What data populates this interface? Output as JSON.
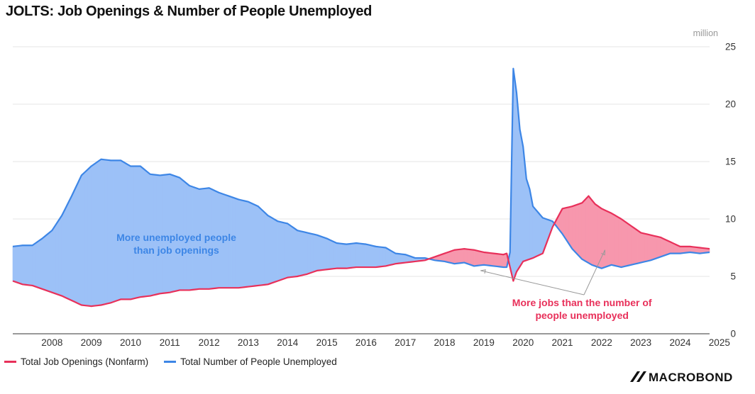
{
  "title": "JOLTS: Job Openings & Number of People Unemployed",
  "colors": {
    "openings": "#e8305a",
    "unemployed": "#3d86e6",
    "openings_fill": "#f797ad",
    "unemployed_fill": "#9cc1f7"
  },
  "logo_text": "MACROBOND",
  "chart_data": {
    "type": "area",
    "title": "JOLTS: Job Openings & Number of People Unemployed",
    "unit_label": "million",
    "xlabel": "",
    "ylabel": "",
    "ylim": [
      0,
      25
    ],
    "y_ticks": [
      0,
      5,
      10,
      15,
      20,
      25
    ],
    "y_axis_side": "right",
    "x_range": [
      "2007-07",
      "2025-04"
    ],
    "x_ticks": [
      "2008",
      "2009",
      "2010",
      "2011",
      "2012",
      "2013",
      "2014",
      "2015",
      "2016",
      "2017",
      "2018",
      "2019",
      "2020",
      "2021",
      "2022",
      "2023",
      "2024",
      "2025"
    ],
    "grid": "horizontal",
    "legend_position": "bottom-left",
    "series": [
      {
        "name": "Total Job Openings (Nonfarm)",
        "points": [
          [
            "2007-07",
            4.6
          ],
          [
            "2007-10",
            4.3
          ],
          [
            "2008-01",
            4.2
          ],
          [
            "2008-04",
            3.9
          ],
          [
            "2008-07",
            3.6
          ],
          [
            "2008-10",
            3.3
          ],
          [
            "2009-01",
            2.9
          ],
          [
            "2009-04",
            2.5
          ],
          [
            "2009-07",
            2.4
          ],
          [
            "2009-10",
            2.5
          ],
          [
            "2010-01",
            2.7
          ],
          [
            "2010-04",
            3.0
          ],
          [
            "2010-07",
            3.0
          ],
          [
            "2010-10",
            3.2
          ],
          [
            "2011-01",
            3.3
          ],
          [
            "2011-04",
            3.5
          ],
          [
            "2011-07",
            3.6
          ],
          [
            "2011-10",
            3.8
          ],
          [
            "2012-01",
            3.8
          ],
          [
            "2012-04",
            3.9
          ],
          [
            "2012-07",
            3.9
          ],
          [
            "2012-10",
            4.0
          ],
          [
            "2013-01",
            4.0
          ],
          [
            "2013-04",
            4.0
          ],
          [
            "2013-07",
            4.1
          ],
          [
            "2013-10",
            4.2
          ],
          [
            "2014-01",
            4.3
          ],
          [
            "2014-04",
            4.6
          ],
          [
            "2014-07",
            4.9
          ],
          [
            "2014-10",
            5.0
          ],
          [
            "2015-01",
            5.2
          ],
          [
            "2015-04",
            5.5
          ],
          [
            "2015-07",
            5.6
          ],
          [
            "2015-10",
            5.7
          ],
          [
            "2016-01",
            5.7
          ],
          [
            "2016-04",
            5.8
          ],
          [
            "2016-07",
            5.8
          ],
          [
            "2016-10",
            5.8
          ],
          [
            "2017-01",
            5.9
          ],
          [
            "2017-04",
            6.1
          ],
          [
            "2017-07",
            6.2
          ],
          [
            "2017-10",
            6.3
          ],
          [
            "2018-01",
            6.4
          ],
          [
            "2018-04",
            6.7
          ],
          [
            "2018-07",
            7.0
          ],
          [
            "2018-10",
            7.3
          ],
          [
            "2019-01",
            7.4
          ],
          [
            "2019-04",
            7.3
          ],
          [
            "2019-07",
            7.1
          ],
          [
            "2019-10",
            7.0
          ],
          [
            "2020-01",
            6.9
          ],
          [
            "2020-02",
            7.0
          ],
          [
            "2020-03",
            5.8
          ],
          [
            "2020-04",
            4.6
          ],
          [
            "2020-05",
            5.4
          ],
          [
            "2020-07",
            6.3
          ],
          [
            "2020-10",
            6.6
          ],
          [
            "2021-01",
            7.0
          ],
          [
            "2021-04",
            9.3
          ],
          [
            "2021-07",
            10.9
          ],
          [
            "2021-10",
            11.1
          ],
          [
            "2022-01",
            11.4
          ],
          [
            "2022-03",
            12.0
          ],
          [
            "2022-05",
            11.3
          ],
          [
            "2022-07",
            10.9
          ],
          [
            "2022-10",
            10.5
          ],
          [
            "2023-01",
            10.0
          ],
          [
            "2023-04",
            9.4
          ],
          [
            "2023-07",
            8.8
          ],
          [
            "2023-10",
            8.6
          ],
          [
            "2024-01",
            8.4
          ],
          [
            "2024-04",
            8.0
          ],
          [
            "2024-07",
            7.6
          ],
          [
            "2024-10",
            7.6
          ],
          [
            "2025-01",
            7.5
          ],
          [
            "2025-04",
            7.4
          ]
        ]
      },
      {
        "name": "Total Number of People Unemployed",
        "points": [
          [
            "2007-07",
            7.6
          ],
          [
            "2007-10",
            7.7
          ],
          [
            "2008-01",
            7.7
          ],
          [
            "2008-04",
            8.3
          ],
          [
            "2008-07",
            9.0
          ],
          [
            "2008-10",
            10.3
          ],
          [
            "2009-01",
            12.0
          ],
          [
            "2009-04",
            13.8
          ],
          [
            "2009-07",
            14.6
          ],
          [
            "2009-10",
            15.2
          ],
          [
            "2010-01",
            15.1
          ],
          [
            "2010-04",
            15.1
          ],
          [
            "2010-07",
            14.6
          ],
          [
            "2010-10",
            14.6
          ],
          [
            "2011-01",
            13.9
          ],
          [
            "2011-04",
            13.8
          ],
          [
            "2011-07",
            13.9
          ],
          [
            "2011-10",
            13.6
          ],
          [
            "2012-01",
            12.9
          ],
          [
            "2012-04",
            12.6
          ],
          [
            "2012-07",
            12.7
          ],
          [
            "2012-10",
            12.3
          ],
          [
            "2013-01",
            12.0
          ],
          [
            "2013-04",
            11.7
          ],
          [
            "2013-07",
            11.5
          ],
          [
            "2013-10",
            11.1
          ],
          [
            "2014-01",
            10.3
          ],
          [
            "2014-04",
            9.8
          ],
          [
            "2014-07",
            9.6
          ],
          [
            "2014-10",
            9.0
          ],
          [
            "2015-01",
            8.8
          ],
          [
            "2015-04",
            8.6
          ],
          [
            "2015-07",
            8.3
          ],
          [
            "2015-10",
            7.9
          ],
          [
            "2016-01",
            7.8
          ],
          [
            "2016-04",
            7.9
          ],
          [
            "2016-07",
            7.8
          ],
          [
            "2016-10",
            7.6
          ],
          [
            "2017-01",
            7.5
          ],
          [
            "2017-04",
            7.0
          ],
          [
            "2017-07",
            6.9
          ],
          [
            "2017-10",
            6.6
          ],
          [
            "2018-01",
            6.6
          ],
          [
            "2018-04",
            6.4
          ],
          [
            "2018-07",
            6.3
          ],
          [
            "2018-10",
            6.1
          ],
          [
            "2019-01",
            6.2
          ],
          [
            "2019-04",
            5.9
          ],
          [
            "2019-07",
            6.0
          ],
          [
            "2019-10",
            5.9
          ],
          [
            "2020-01",
            5.8
          ],
          [
            "2020-02",
            5.8
          ],
          [
            "2020-03",
            7.1
          ],
          [
            "2020-04",
            23.1
          ],
          [
            "2020-05",
            21.0
          ],
          [
            "2020-06",
            17.8
          ],
          [
            "2020-07",
            16.3
          ],
          [
            "2020-08",
            13.5
          ],
          [
            "2020-09",
            12.6
          ],
          [
            "2020-10",
            11.1
          ],
          [
            "2021-01",
            10.1
          ],
          [
            "2021-04",
            9.8
          ],
          [
            "2021-07",
            8.7
          ],
          [
            "2021-10",
            7.4
          ],
          [
            "2022-01",
            6.5
          ],
          [
            "2022-04",
            6.0
          ],
          [
            "2022-07",
            5.7
          ],
          [
            "2022-10",
            6.0
          ],
          [
            "2023-01",
            5.8
          ],
          [
            "2023-04",
            6.0
          ],
          [
            "2023-07",
            6.2
          ],
          [
            "2023-10",
            6.4
          ],
          [
            "2024-01",
            6.7
          ],
          [
            "2024-04",
            7.0
          ],
          [
            "2024-07",
            7.0
          ],
          [
            "2024-10",
            7.1
          ],
          [
            "2025-01",
            7.0
          ],
          [
            "2025-04",
            7.1
          ]
        ]
      }
    ],
    "annotations": [
      {
        "text": "More unemployed people than job openings",
        "x": "2011-09",
        "y": 7.6
      },
      {
        "text": "More jobs than the number of people unemployed",
        "x": "2022-01",
        "y": 2.0,
        "arrows_to": [
          [
            "2019-06",
            5.5
          ],
          [
            "2022-08",
            7.3
          ]
        ]
      }
    ]
  }
}
